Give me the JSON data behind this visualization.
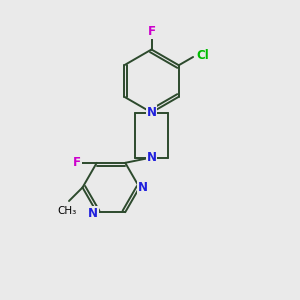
{
  "background_color": "#eaeaea",
  "bond_color": "#2d4a2d",
  "atom_colors": {
    "N": "#2020dd",
    "F": "#cc00cc",
    "Cl": "#00bb00",
    "C": "#000000"
  },
  "figsize": [
    3.0,
    3.0
  ],
  "dpi": 100
}
